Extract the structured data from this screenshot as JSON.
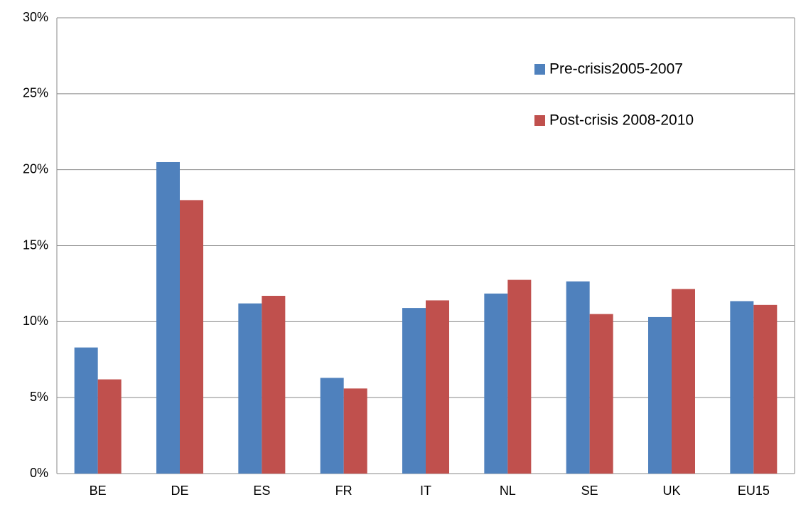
{
  "chart_data": {
    "type": "bar",
    "categories": [
      "BE",
      "DE",
      "ES",
      "FR",
      "IT",
      "NL",
      "SE",
      "UK",
      "EU15"
    ],
    "series": [
      {
        "name": "Pre-crisis2005-2007",
        "color": "#4f81bd",
        "values": [
          8.3,
          20.5,
          11.2,
          6.3,
          10.9,
          11.85,
          12.65,
          10.3,
          11.35
        ]
      },
      {
        "name": "Post-crisis 2008-2010",
        "color": "#c0504d",
        "values": [
          6.2,
          18.0,
          11.7,
          5.6,
          11.4,
          12.75,
          10.5,
          12.15,
          11.1
        ]
      }
    ],
    "ylim": [
      0,
      30
    ],
    "yticks": [
      {
        "value": 0,
        "label": "0%"
      },
      {
        "value": 5,
        "label": "5%"
      },
      {
        "value": 10,
        "label": "10%"
      },
      {
        "value": 15,
        "label": "15%"
      },
      {
        "value": 20,
        "label": "20%"
      },
      {
        "value": 25,
        "label": "25%"
      },
      {
        "value": 30,
        "label": "30%"
      }
    ],
    "grid": true,
    "legend": "upper right"
  }
}
